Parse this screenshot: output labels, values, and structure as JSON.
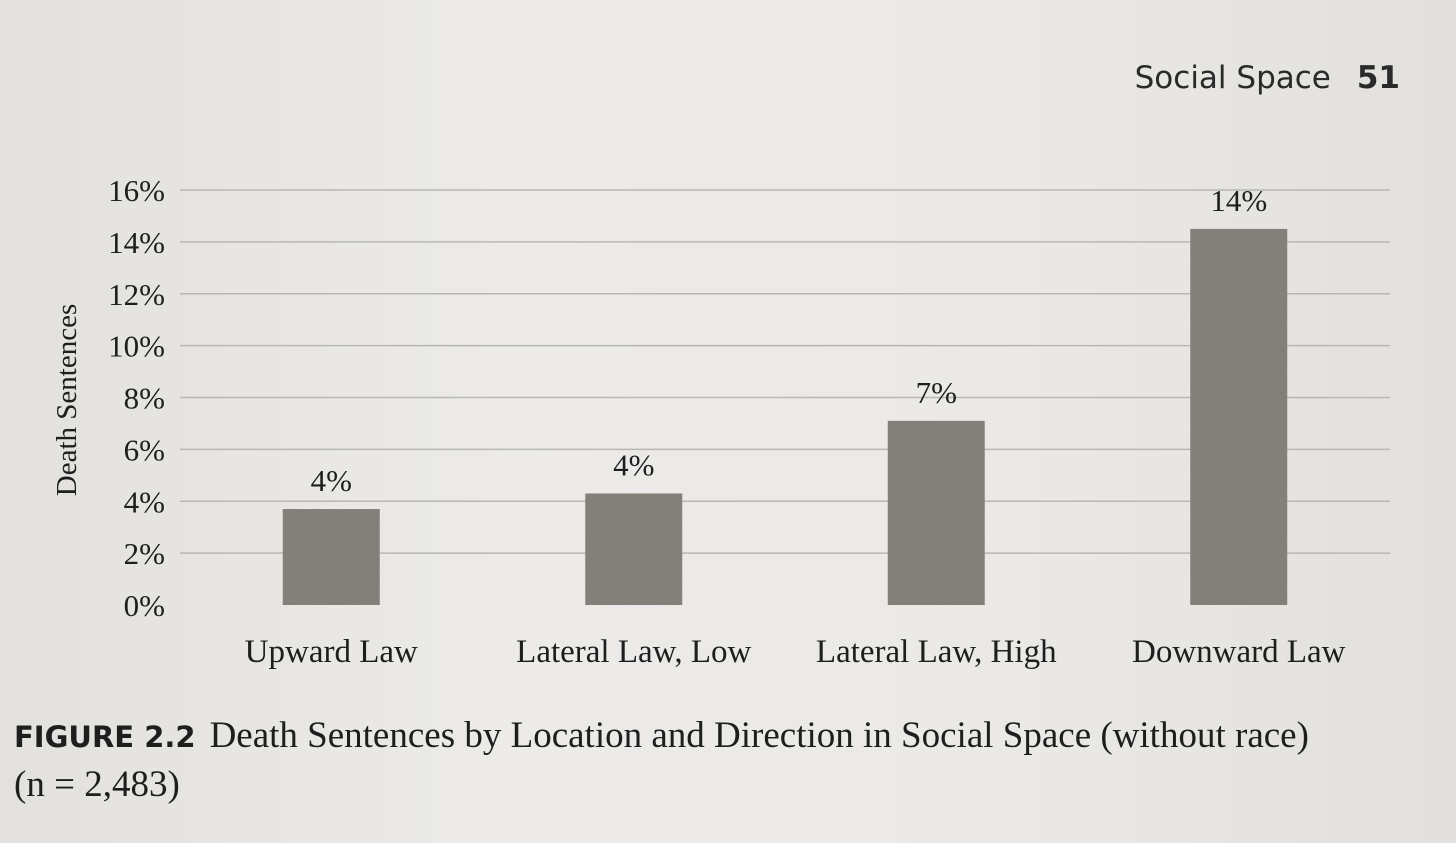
{
  "running_head": {
    "title": "Social Space",
    "page_number": "51"
  },
  "caption": {
    "label": "FIGURE 2.2",
    "text": "Death Sentences by Location and Direction in Social Space (without race)",
    "n_note": "(n = 2,483)"
  },
  "chart_data": {
    "type": "bar",
    "title": "",
    "xlabel": "",
    "ylabel": "Death Sentences",
    "categories": [
      "Upward Law",
      "Lateral Law, Low",
      "Lateral Law, High",
      "Downward Law"
    ],
    "values": [
      3.7,
      4.3,
      7.1,
      14.5
    ],
    "data_labels": [
      "4%",
      "4%",
      "7%",
      "14%"
    ],
    "ylim": [
      0,
      16
    ],
    "y_ticks": [
      0,
      2,
      4,
      6,
      8,
      10,
      12,
      14,
      16
    ],
    "y_tick_labels": [
      "0%",
      "2%",
      "4%",
      "6%",
      "8%",
      "10%",
      "12%",
      "14%",
      "16%"
    ],
    "grid": true,
    "legend": "none",
    "bar_color": "#8a8780"
  }
}
